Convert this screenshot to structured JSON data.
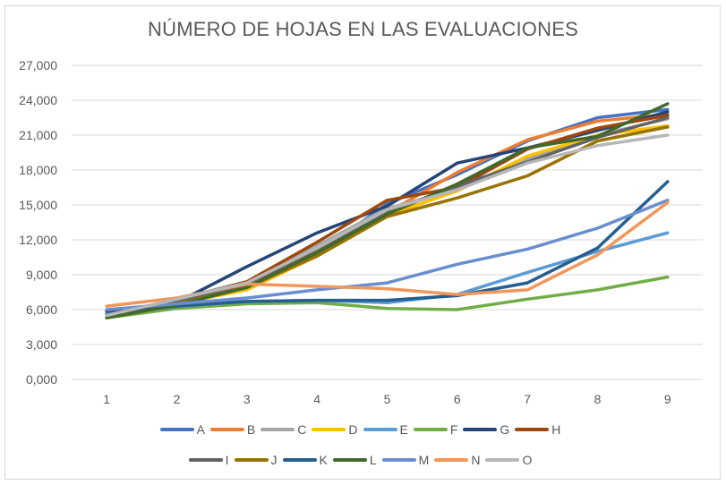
{
  "chart_data": {
    "type": "line",
    "title": "NÚMERO DE HOJAS EN LAS EVALUACIONES",
    "xlabel": "",
    "ylabel": "",
    "categories": [
      "1",
      "2",
      "3",
      "4",
      "5",
      "6",
      "7",
      "8",
      "9"
    ],
    "ylim": [
      0,
      27000
    ],
    "yticks": [
      0,
      3000,
      6000,
      9000,
      12000,
      15000,
      18000,
      21000,
      24000,
      27000
    ],
    "ytick_labels": [
      "0,000",
      "3,000",
      "6,000",
      "9,000",
      "12,000",
      "15,000",
      "18,000",
      "21,000",
      "24,000",
      "27,000"
    ],
    "grid": true,
    "legend_position": "bottom",
    "series": [
      {
        "name": "A",
        "color": "#4472C4",
        "values": [
          5800,
          6600,
          8000,
          10800,
          15100,
          17600,
          20500,
          22500,
          23200
        ]
      },
      {
        "name": "B",
        "color": "#ED7D31",
        "values": [
          5600,
          6700,
          8200,
          10900,
          14300,
          17800,
          20600,
          22200,
          22800
        ]
      },
      {
        "name": "C",
        "color": "#A5A5A5",
        "values": [
          5500,
          6900,
          8400,
          11500,
          14700,
          16300,
          19000,
          21000,
          22400
        ]
      },
      {
        "name": "D",
        "color": "#FFC000",
        "values": [
          5400,
          6500,
          7700,
          10600,
          14100,
          16200,
          19200,
          21000,
          21800
        ]
      },
      {
        "name": "E",
        "color": "#5B9BD5",
        "values": [
          5700,
          6400,
          6700,
          6800,
          6600,
          7300,
          9200,
          11000,
          12600
        ]
      },
      {
        "name": "F",
        "color": "#70AD47",
        "values": [
          5300,
          6100,
          6500,
          6600,
          6100,
          6000,
          6900,
          7700,
          8800
        ]
      },
      {
        "name": "G",
        "color": "#264478",
        "values": [
          5900,
          6600,
          9700,
          12600,
          14900,
          18600,
          19900,
          21400,
          23000
        ]
      },
      {
        "name": "H",
        "color": "#9E480E",
        "values": [
          5500,
          6800,
          8400,
          11800,
          15400,
          16500,
          19800,
          21600,
          22700
        ]
      },
      {
        "name": "I",
        "color": "#636363",
        "values": [
          5400,
          6700,
          8200,
          11200,
          14400,
          16600,
          18700,
          20800,
          22500
        ]
      },
      {
        "name": "J",
        "color": "#997300",
        "values": [
          5300,
          6500,
          7900,
          10600,
          14000,
          15600,
          17500,
          20500,
          21700
        ]
      },
      {
        "name": "K",
        "color": "#255E91",
        "values": [
          5600,
          6300,
          6700,
          6800,
          6800,
          7200,
          8300,
          11300,
          17000
        ]
      },
      {
        "name": "L",
        "color": "#43682B",
        "values": [
          5300,
          6400,
          7900,
          10900,
          14200,
          16800,
          19900,
          20900,
          23700
        ]
      },
      {
        "name": "M",
        "color": "#698ED0",
        "values": [
          6000,
          6500,
          7000,
          7700,
          8300,
          9900,
          11200,
          13000,
          15400
        ]
      },
      {
        "name": "N",
        "color": "#F1975A",
        "values": [
          6300,
          7000,
          8200,
          8000,
          7800,
          7300,
          7700,
          10700,
          15200
        ]
      },
      {
        "name": "O",
        "color": "#B7B7B7",
        "values": [
          5500,
          6900,
          8300,
          11300,
          14600,
          16300,
          18600,
          20100,
          21000
        ]
      }
    ]
  }
}
